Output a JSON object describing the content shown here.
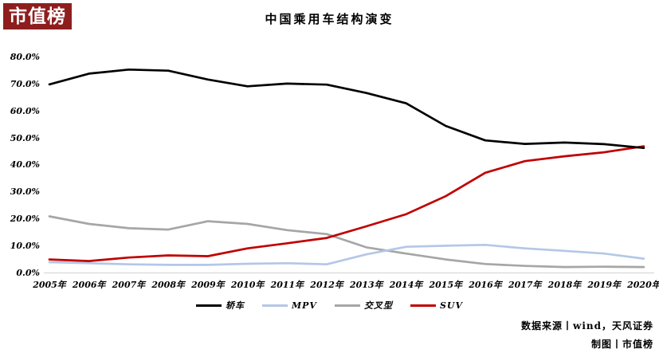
{
  "logo": {
    "text": "市值榜"
  },
  "chart_data": {
    "type": "line",
    "title": "中国乘用车结构演变",
    "x": [
      "2005年",
      "2006年",
      "2007年",
      "2008年",
      "2009年",
      "2010年",
      "2011年",
      "2012年",
      "2013年",
      "2014年",
      "2015年",
      "2016年",
      "2017年",
      "2018年",
      "2019年",
      "2020年"
    ],
    "series": [
      {
        "name": "轿车",
        "color": "#000000",
        "values": [
          70.0,
          74.0,
          75.5,
          75.1,
          71.8,
          69.3,
          70.3,
          69.9,
          66.8,
          63.0,
          54.6,
          49.2,
          47.9,
          48.4,
          47.8,
          46.4
        ]
      },
      {
        "name": "MPV",
        "color": "#b4c7e7",
        "values": [
          4.0,
          3.6,
          3.2,
          3.0,
          3.0,
          3.4,
          3.6,
          3.2,
          6.9,
          9.7,
          10.1,
          10.4,
          9.1,
          8.2,
          7.2,
          5.3
        ]
      },
      {
        "name": "交叉型",
        "color": "#a6a6a6",
        "values": [
          21.0,
          18.2,
          16.6,
          16.1,
          19.2,
          18.2,
          15.9,
          14.4,
          9.5,
          7.2,
          5.0,
          3.3,
          2.6,
          2.2,
          2.3,
          2.2
        ]
      },
      {
        "name": "SUV",
        "color": "#c00000",
        "values": [
          5.0,
          4.4,
          5.7,
          6.5,
          6.2,
          9.1,
          11.0,
          13.0,
          17.3,
          21.8,
          28.5,
          37.2,
          41.5,
          43.3,
          44.8,
          47.0
        ]
      }
    ],
    "y_ticks": [
      {
        "value": 0,
        "label": "0.0%"
      },
      {
        "value": 10,
        "label": "10.0%"
      },
      {
        "value": 20,
        "label": "20.0%"
      },
      {
        "value": 30,
        "label": "30.0%"
      },
      {
        "value": 40,
        "label": "40.0%"
      },
      {
        "value": 50,
        "label": "50.0%"
      },
      {
        "value": 60,
        "label": "60.0%"
      },
      {
        "value": 70,
        "label": "70.0%"
      },
      {
        "value": 80,
        "label": "80.0%"
      }
    ],
    "ylim": [
      0,
      80
    ],
    "grid": false,
    "legend_position": "bottom",
    "axis_line_color": "#d9d9d9"
  },
  "footer": {
    "source": "数据来源丨wind，天风证券",
    "credit": "制图丨市值榜"
  }
}
